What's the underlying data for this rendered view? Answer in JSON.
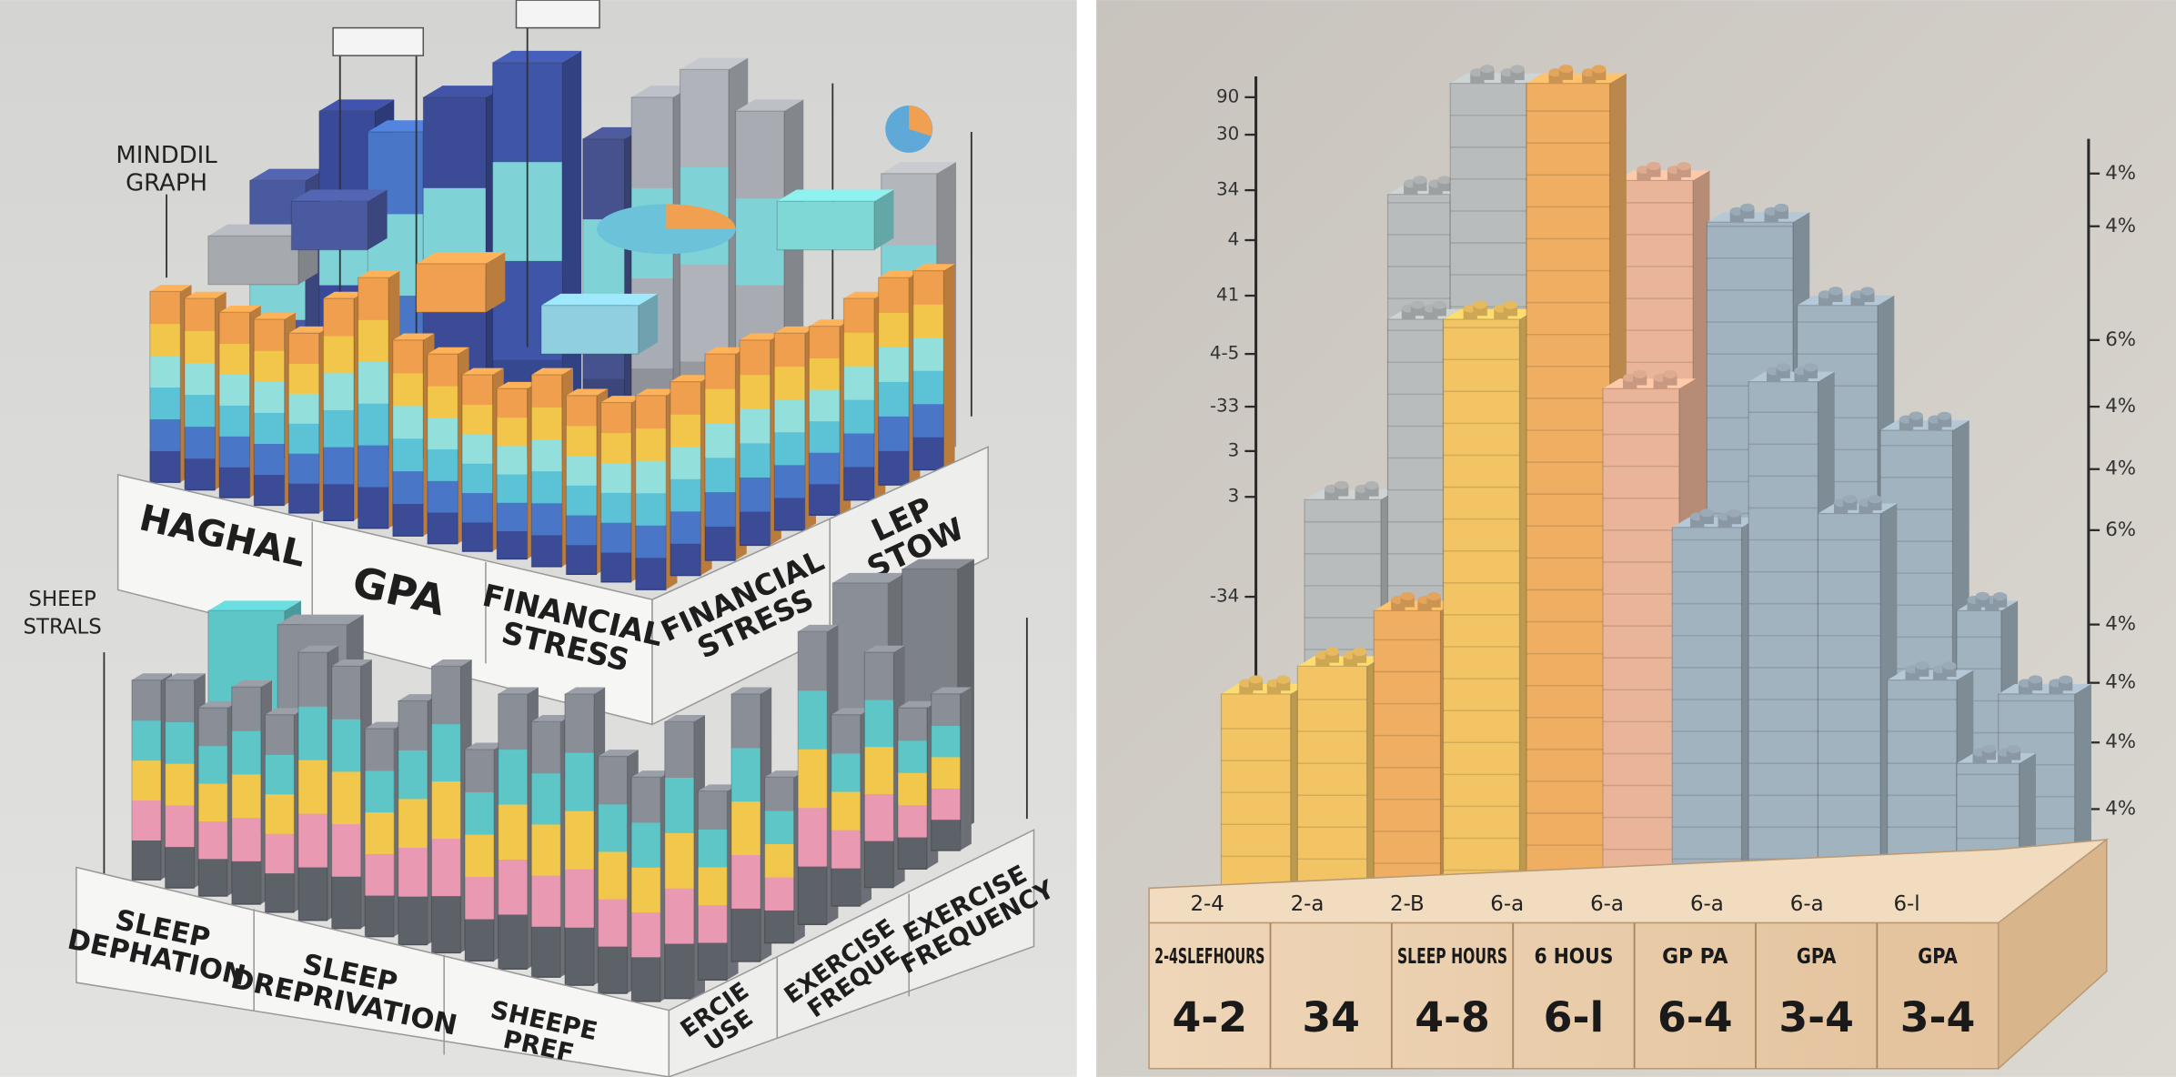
{
  "left_panel": {
    "title": "MINDDIL GRAPH",
    "side_label": "SHEEP STRALS",
    "upper_labels": [
      "HAGHAL",
      "GPA",
      "FINANCIAL STRESS",
      "FINANCIAL STRESS",
      "LEP STOW"
    ],
    "lower_labels": [
      "SLEEP DEPHATION",
      "SLEEP DREPRIVATION",
      "SHEEPE PREF",
      "ERCIE USE",
      "EXERCISE FREQUE",
      "EXERCISE FREQUENCY"
    ]
  },
  "right_panel": {
    "left_axis_labels": [
      "90",
      "30",
      "34",
      "4",
      "41",
      "4-5",
      "-33",
      "3",
      "3",
      "-34"
    ],
    "right_axis_labels": [
      "4%",
      "4%",
      "6%",
      "4%",
      "4%",
      "6%",
      "4%",
      "4%",
      "4%",
      "4%"
    ],
    "base_top_labels": [
      "2-4",
      "2-a",
      "2-B",
      "6-a",
      "6-a",
      "6-a",
      "6-a",
      "6-l"
    ],
    "base_cells": [
      {
        "small": "2-4SLEFHOURS",
        "big": "4-2"
      },
      {
        "big": "34"
      },
      {
        "small": "SLEEP HOURS",
        "big": "4-8"
      },
      {
        "small": "6 HOUS",
        "big": "6-l"
      },
      {
        "small": "GP PA",
        "big": "6-4"
      },
      {
        "small": "GPA",
        "big": "3-4"
      },
      {
        "small": "GPA",
        "big": "3-4"
      }
    ]
  }
}
